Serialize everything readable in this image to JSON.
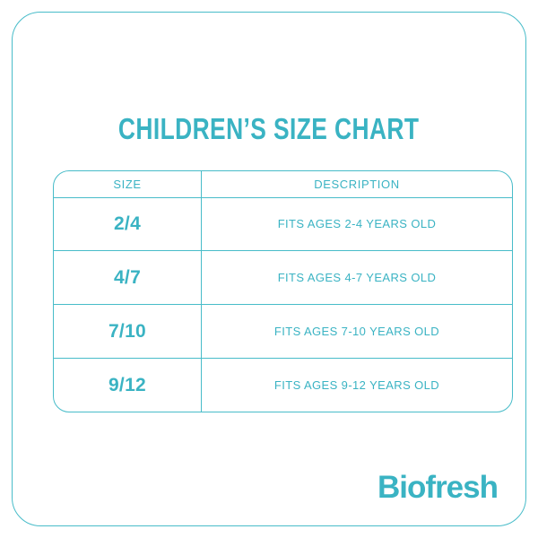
{
  "colors": {
    "accent_text": "#3ab3c3",
    "accent_border": "#48bcc9",
    "background": "#ffffff"
  },
  "title": "CHILDREN’S SIZE CHART",
  "table": {
    "headers": [
      "SIZE",
      "DESCRIPTION"
    ],
    "rows": [
      {
        "size": "2/4",
        "description": "FITS AGES 2-4 YEARS OLD"
      },
      {
        "size": "4/7",
        "description": "FITS AGES 4-7 YEARS OLD"
      },
      {
        "size": "7/10",
        "description": "FITS AGES 7-10 YEARS OLD"
      },
      {
        "size": "9/12",
        "description": "FITS AGES 9-12 YEARS OLD"
      }
    ]
  },
  "brand": {
    "name": "Biofresh"
  }
}
